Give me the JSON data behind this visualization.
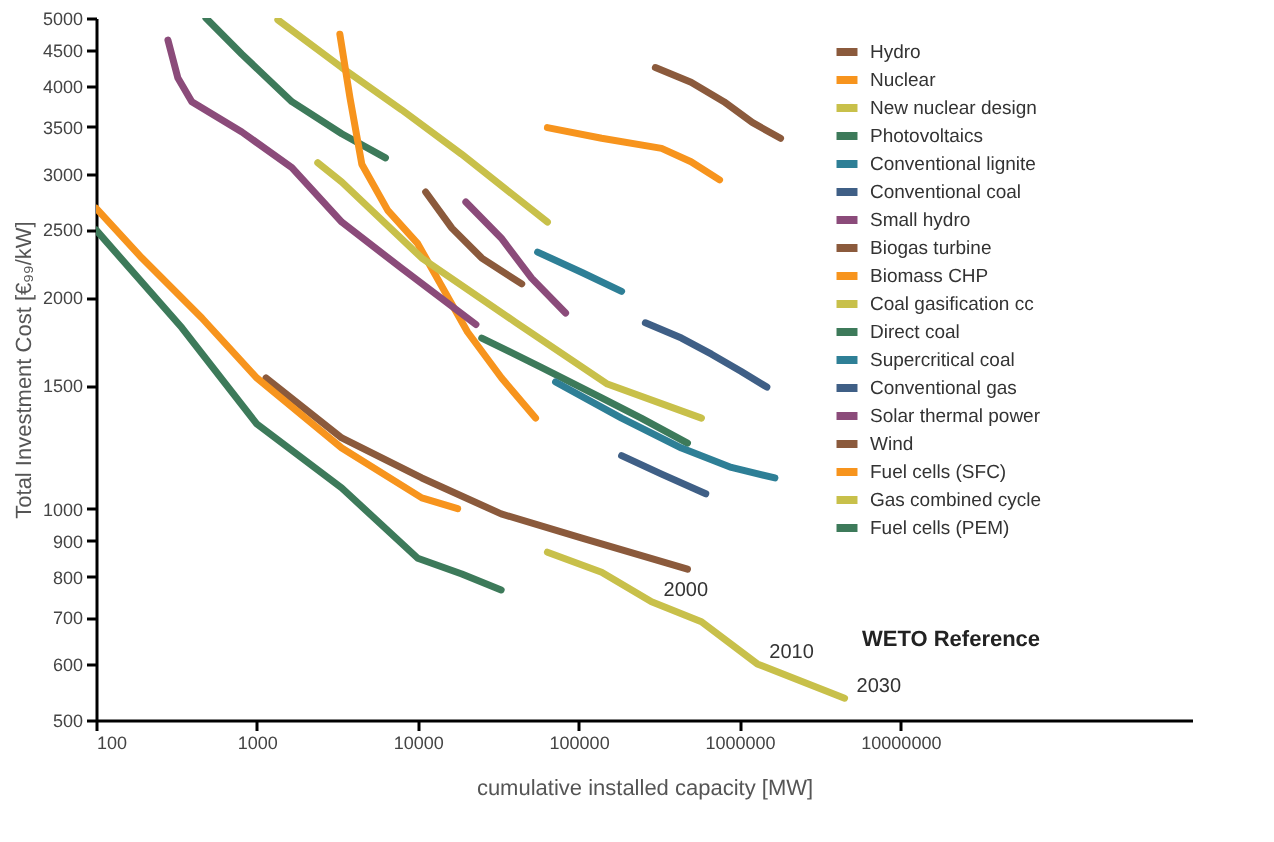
{
  "chart_data": {
    "type": "line",
    "xlabel": "cumulative installed capacity [MW]",
    "ylabel": "Total Investment Cost [€₉₉/kW]",
    "log": "xy",
    "grid": false,
    "legend": "top right",
    "line_style": "solid",
    "xlim": [
      100,
      650000000
    ],
    "xticks": [
      100,
      1000,
      10000,
      100000,
      1000000,
      10000000
    ],
    "ylim": [
      500,
      5000
    ],
    "yticks": [
      500,
      600,
      700,
      800,
      900,
      1000,
      1500,
      2000,
      2500,
      3000,
      3500,
      4000,
      4500,
      5000
    ],
    "series": [
      {
        "name": "Hydro",
        "color": "#8b5a3c",
        "x": [
          300000,
          500000,
          800000,
          1200000,
          1800000
        ],
        "values": [
          4250,
          4050,
          3800,
          3550,
          3370
        ]
      },
      {
        "name": "Nuclear",
        "color": "#f7941d",
        "x": [
          64000,
          139000,
          328000,
          500000,
          752000
        ],
        "values": [
          3490,
          3370,
          3260,
          3120,
          2940
        ]
      },
      {
        "name": "New nuclear design",
        "color": "#c8c04a",
        "x": [
          1350,
          3370,
          7940,
          18700,
          64000
        ],
        "values": [
          4970,
          4250,
          3700,
          3200,
          2560
        ]
      },
      {
        "name": "Photovoltaics",
        "color": "#3d7a5a",
        "x": [
          482,
          807,
          1650,
          3370,
          6300
        ],
        "values": [
          5000,
          4440,
          3800,
          3420,
          3160
        ]
      },
      {
        "name": "Conventional lignite",
        "color": "#2e7f96",
        "x": [
          55600,
          105000,
          185000
        ],
        "values": [
          2320,
          2170,
          2040
        ]
      },
      {
        "name": "Conventional coal",
        "color": "#3f5f86",
        "x": [
          260000,
          436000,
          670000,
          1020000,
          1480000
        ],
        "values": [
          1840,
          1750,
          1660,
          1570,
          1490
        ]
      },
      {
        "name": "Small hydro",
        "color": "#8b4b7a",
        "x": [
          19900,
          33000,
          51000,
          83000
        ],
        "values": [
          2735,
          2430,
          2130,
          1900
        ]
      },
      {
        "name": "Biogas turbine",
        "color": "#8b5a3c",
        "x": [
          11200,
          16300,
          25000,
          44300
        ],
        "values": [
          2825,
          2510,
          2275,
          2090
        ]
      },
      {
        "name": "Biomass CHP",
        "color": "#f7941d",
        "x": [
          3280,
          3790,
          4490,
          6510,
          10000,
          20400,
          33200,
          54000
        ],
        "values": [
          4740,
          3850,
          3095,
          2660,
          2385,
          1785,
          1535,
          1346
        ]
      },
      {
        "name": "Coal gasification cc",
        "color": "#c8c04a",
        "x": [
          2390,
          3370,
          10600,
          40600,
          151000,
          580000
        ],
        "values": [
          3110,
          2920,
          2275,
          1843,
          1505,
          1346
        ]
      },
      {
        "name": "Direct coal",
        "color": "#3d7a5a",
        "x": [
          25000,
          58600,
          139000,
          245000,
          475000
        ],
        "values": [
          1750,
          1590,
          1438,
          1346,
          1240
        ]
      },
      {
        "name": "Supercritical coal",
        "color": "#2e7f96",
        "x": [
          71900,
          185000,
          436000,
          890000,
          1660000
        ],
        "values": [
          1515,
          1346,
          1220,
          1145,
          1106
        ]
      },
      {
        "name": "Conventional gas",
        "color": "#3f5f86",
        "x": [
          185000,
          328000,
          617000
        ],
        "values": [
          1190,
          1120,
          1050
        ]
      },
      {
        "name": "Solar thermal power",
        "color": "#8b4b7a",
        "x": [
          280,
          323,
          394,
          807,
          1650,
          3370,
          7940,
          23000
        ],
        "values": [
          4650,
          4106,
          3800,
          3440,
          3060,
          2560,
          2200,
          1830
        ]
      },
      {
        "name": "Wind",
        "color": "#8b5a3c",
        "x": [
          1140,
          3370,
          10600,
          33000,
          105000,
          475000
        ],
        "values": [
          1535,
          1261,
          1106,
          983,
          908,
          820
        ]
      },
      {
        "name": "Fuel cells (SFC)",
        "color": "#f7941d",
        "x": [
          100,
          193,
          455,
          1000,
          3370,
          10600,
          17700
        ],
        "values": [
          2680,
          2275,
          1869,
          1535,
          1220,
          1036,
          1000
        ]
      },
      {
        "name": "Gas combined cycle",
        "color": "#c8c04a",
        "x": [
          64000,
          139000,
          284000,
          580000,
          1290000,
          4500000
        ],
        "values": [
          867,
          812,
          737,
          690,
          601,
          537
        ]
      },
      {
        "name": "Fuel cells (PEM)",
        "color": "#3d7a5a",
        "x": [
          100,
          342,
          1000,
          3370,
          10000,
          18800,
          33000
        ],
        "values": [
          2495,
          1810,
          1320,
          1070,
          850,
          807,
          766
        ]
      }
    ],
    "annotations": [
      {
        "text": "2000",
        "x": 284000,
        "y": 737
      },
      {
        "text": "2010",
        "x": 1290000,
        "y": 601
      },
      {
        "text": "2030",
        "x": 4500000,
        "y": 537
      },
      "WETO Reference"
    ]
  }
}
